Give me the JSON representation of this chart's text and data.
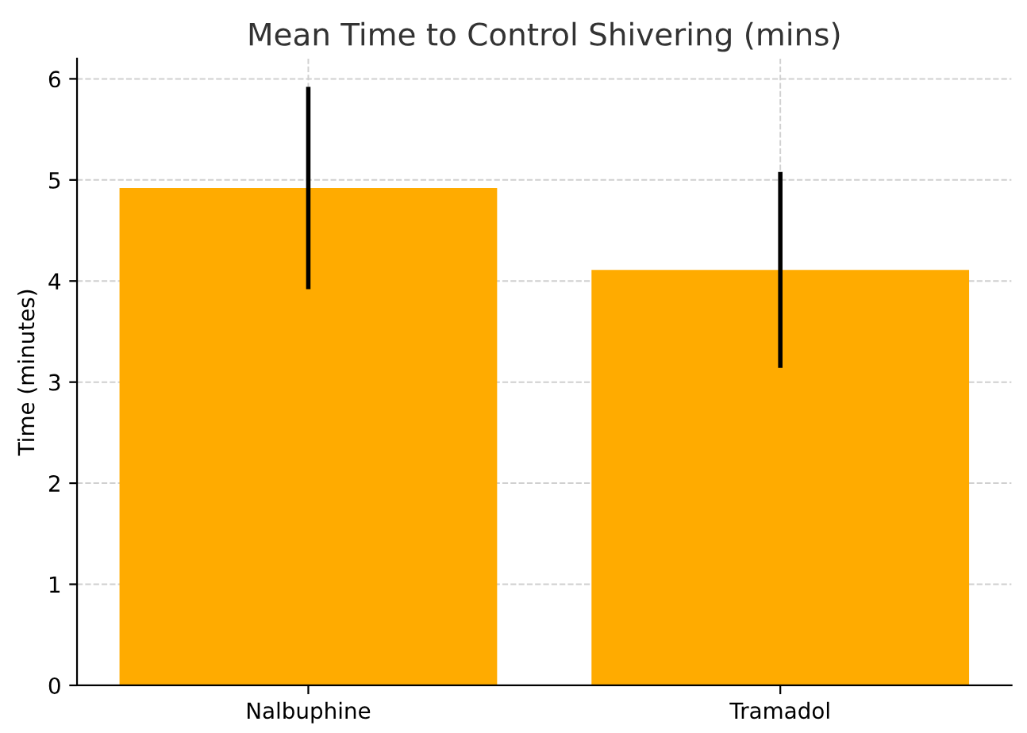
{
  "chart_data": {
    "type": "bar",
    "title": "Mean Time to Control Shivering (mins)",
    "ylabel": "Time (minutes)",
    "categories": [
      "Nalbuphine",
      "Tramadol"
    ],
    "values": [
      4.92,
      4.11
    ],
    "errors": [
      1.0,
      0.97
    ],
    "color": "#ffab00",
    "ylim": [
      0,
      6.2
    ],
    "yticks": [
      0,
      1,
      2,
      3,
      4,
      5,
      6
    ],
    "grid": true
  }
}
